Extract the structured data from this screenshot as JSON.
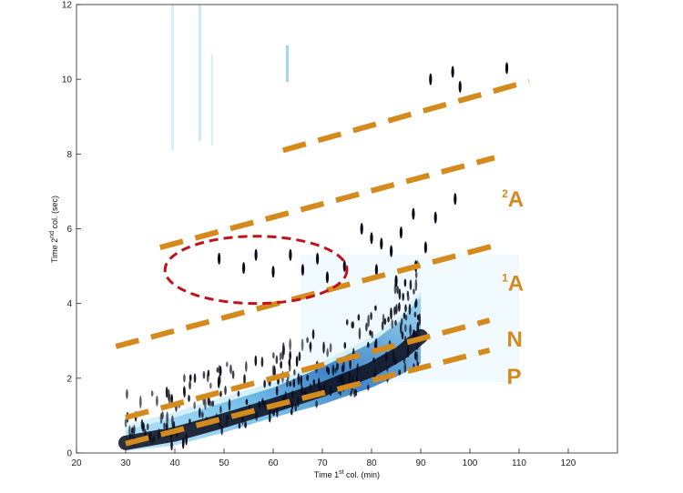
{
  "chart_data": {
    "type": "heatmap",
    "title": "",
    "xlabel": {
      "prefix": "Time 1",
      "sup": "st",
      "suffix": " col. (min)"
    },
    "ylabel": {
      "prefix": "Time 2",
      "sup": "nd",
      "suffix": " col. (sec)"
    },
    "xlim": [
      20,
      130
    ],
    "ylim": [
      0,
      12
    ],
    "xticks": [
      20,
      30,
      40,
      50,
      60,
      70,
      80,
      90,
      100,
      110,
      120
    ],
    "yticks": [
      0,
      2,
      4,
      6,
      8,
      10,
      12
    ],
    "grid": false,
    "colors": {
      "boundary": "#d48a1c",
      "ellipse": "#c0121b",
      "band_light": "#cfeefb",
      "band_mid": "#7cc6ee",
      "band_dark": "#2b6fb8",
      "peak": "#0b0b1a"
    },
    "boundaries": [
      {
        "name": "top",
        "x": [
          62,
          112
        ],
        "y": [
          8.1,
          9.95
        ]
      },
      {
        "name": "2A-upper",
        "x": [
          37,
          105
        ],
        "y": [
          5.5,
          7.9
        ]
      },
      {
        "name": "1A-upper",
        "x": [
          28,
          105
        ],
        "y": [
          2.85,
          5.55
        ]
      },
      {
        "name": "N-upper",
        "x": [
          30,
          104
        ],
        "y": [
          0.95,
          3.55
        ]
      },
      {
        "name": "P-upper",
        "x": [
          30,
          104
        ],
        "y": [
          0.25,
          2.75
        ]
      }
    ],
    "region_labels": [
      {
        "text": "A",
        "sup": "2",
        "x": 106.5,
        "y": 6.6
      },
      {
        "text": "A",
        "sup": "1",
        "x": 106.5,
        "y": 4.35
      },
      {
        "text": "N",
        "sup": "",
        "x": 107.5,
        "y": 2.85
      },
      {
        "text": "P",
        "sup": "",
        "x": 107.5,
        "y": 1.85
      }
    ],
    "highlight_ellipse": {
      "cx": 56.5,
      "cy": 4.9,
      "rx": 18.5,
      "ry": 0.9
    },
    "main_band": {
      "x": [
        30,
        40,
        50,
        60,
        70,
        80,
        86,
        90
      ],
      "y_low": [
        0.05,
        0.2,
        0.55,
        0.95,
        1.3,
        1.75,
        2.1,
        2.4
      ],
      "y_high": [
        0.6,
        0.95,
        1.35,
        1.75,
        2.3,
        2.95,
        3.55,
        4.2
      ]
    },
    "peaks": [
      {
        "x": 49,
        "y": 5.2
      },
      {
        "x": 54,
        "y": 4.95
      },
      {
        "x": 56.5,
        "y": 5.3
      },
      {
        "x": 60,
        "y": 4.85
      },
      {
        "x": 63.5,
        "y": 5.3
      },
      {
        "x": 66,
        "y": 4.9
      },
      {
        "x": 69,
        "y": 5.2
      },
      {
        "x": 71,
        "y": 4.7
      },
      {
        "x": 74.5,
        "y": 5.0
      },
      {
        "x": 78,
        "y": 6.0
      },
      {
        "x": 80,
        "y": 5.75
      },
      {
        "x": 82,
        "y": 5.6
      },
      {
        "x": 84,
        "y": 5.4
      },
      {
        "x": 86,
        "y": 5.9
      },
      {
        "x": 88.5,
        "y": 6.4
      },
      {
        "x": 91,
        "y": 5.5
      },
      {
        "x": 93,
        "y": 6.3
      },
      {
        "x": 97,
        "y": 6.8
      },
      {
        "x": 81,
        "y": 4.9
      },
      {
        "x": 85,
        "y": 4.6
      },
      {
        "x": 89,
        "y": 5.0
      },
      {
        "x": 92,
        "y": 10.0
      },
      {
        "x": 96.5,
        "y": 10.2
      },
      {
        "x": 107.5,
        "y": 10.3
      },
      {
        "x": 98,
        "y": 9.8
      }
    ]
  }
}
